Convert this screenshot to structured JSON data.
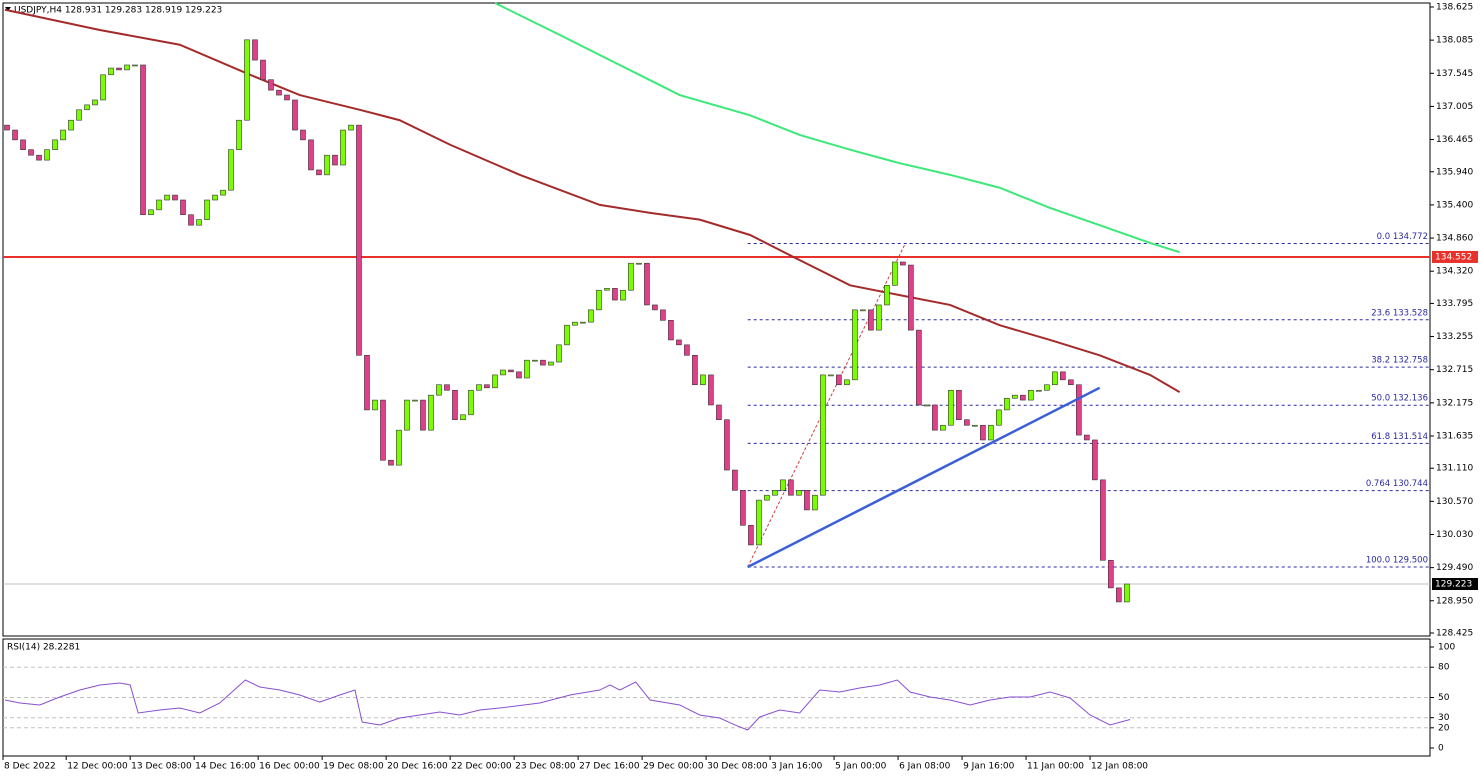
{
  "chart_data": {
    "type": "candlestick",
    "title": "USDJPY,H4 128.931 129.283 128.919 129.223",
    "candles": {
      "up_color": "#7cfc00",
      "down_color": "#e0408a",
      "open_first": 136.7,
      "close": [
        136.62,
        136.46,
        136.3,
        136.21,
        136.13,
        136.3,
        136.46,
        136.62,
        136.78,
        136.95,
        137.03,
        137.11,
        137.52,
        137.63,
        137.6,
        137.68,
        137.68,
        135.24,
        135.32,
        135.48,
        135.56,
        135.48,
        135.24,
        135.07,
        135.16,
        135.48,
        135.56,
        135.64,
        136.3,
        136.78,
        138.09,
        137.76,
        137.44,
        137.27,
        137.19,
        137.11,
        136.62,
        136.46,
        135.97,
        135.89,
        136.21,
        136.05,
        136.62,
        136.7,
        132.95,
        132.06,
        132.22,
        131.24,
        131.16,
        131.73,
        132.22,
        132.22,
        131.73,
        132.3,
        132.47,
        132.38,
        131.9,
        131.98,
        132.38,
        132.47,
        132.42,
        132.63,
        132.71,
        132.68,
        132.58,
        132.87,
        132.87,
        132.79,
        132.84,
        133.12,
        133.44,
        133.49,
        133.49,
        133.69,
        134.01,
        134.04,
        133.85,
        134.01,
        134.45,
        134.45,
        133.77,
        133.69,
        133.52,
        133.2,
        133.12,
        132.95,
        132.47,
        132.63,
        132.14,
        131.9,
        131.08,
        130.75,
        130.18,
        129.86,
        130.59,
        130.67,
        130.75,
        130.92,
        130.67,
        130.75,
        130.43,
        130.67,
        132.63,
        132.63,
        132.47,
        132.55,
        133.69,
        133.69,
        133.36,
        133.77,
        134.09,
        134.47,
        134.42,
        133.36,
        132.14,
        132.14,
        131.73,
        131.81,
        132.38,
        131.9,
        131.81,
        131.81,
        131.57,
        131.81,
        132.06,
        132.25,
        132.3,
        132.22,
        132.38,
        132.38,
        132.47,
        132.68,
        132.55,
        132.47,
        131.65,
        131.57,
        130.92,
        129.61,
        129.16,
        128.931,
        129.223
      ]
    },
    "xlim": [
      -0.5,
      177.9
    ],
    "ylim": [
      128.376,
      138.69
    ],
    "yticks": [
      138.625,
      138.085,
      137.545,
      137.005,
      136.465,
      {
        "value": 135.94,
        "label": "135.940"
      },
      {
        "value": 135.4,
        "label": "135.400"
      },
      {
        "value": 134.86,
        "label": "134.860"
      },
      {
        "value": 134.32,
        "label": "134.320"
      },
      133.795,
      133.255,
      132.715,
      132.175,
      131.635,
      {
        "value": 131.11,
        "label": "131.110"
      },
      {
        "value": 130.57,
        "label": "130.570"
      },
      {
        "value": 130.03,
        "label": "130.030"
      },
      {
        "value": 129.49,
        "label": "129.490"
      },
      {
        "value": 128.95,
        "label": "128.950"
      },
      128.425
    ],
    "xticks": [
      {
        "value": -0.5,
        "label": "8 Dec 2022"
      },
      {
        "value": 7.4,
        "label": "12 Dec 00:00"
      },
      {
        "value": 15.4,
        "label": "13 Dec 08:00"
      },
      {
        "value": 23.4,
        "label": "14 Dec 16:00"
      },
      {
        "value": 31.4,
        "label": "16 Dec 00:00"
      },
      {
        "value": 39.4,
        "label": "19 Dec 08:00"
      },
      {
        "value": 47.4,
        "label": "20 Dec 16:00"
      },
      {
        "value": 55.4,
        "label": "22 Dec 00:00"
      },
      {
        "value": 63.4,
        "label": "23 Dec 08:00"
      },
      {
        "value": 71.4,
        "label": "27 Dec 16:00"
      },
      {
        "value": 79.4,
        "label": "29 Dec 00:00"
      },
      {
        "value": 87.4,
        "label": "30 Dec 08:00"
      },
      {
        "value": 95.4,
        "label": "3 Jan 16:00"
      },
      {
        "value": 103.4,
        "label": "5 Jan 00:00"
      },
      {
        "value": 111.4,
        "label": "6 Jan 08:00"
      },
      {
        "value": 119.4,
        "label": "9 Jan 16:00"
      },
      {
        "value": 127.4,
        "label": "11 Jan 00:00"
      },
      {
        "value": 135.4,
        "label": "12 Jan 08:00"
      }
    ],
    "moving_averages": [
      {
        "color": "#a52a2a",
        "x": [
          -0.25,
          11.6,
          21.6,
          30.4,
          36.6,
          44.1,
          49.1,
          55.4,
          64.1,
          74.1,
          80.4,
          86.6,
          92.9,
          99.1,
          105.4,
          111.6,
          117.9,
          124.1,
          130.4,
          136.6,
          142.9,
          146.6
        ],
        "values": [
          138.58,
          138.25,
          138.01,
          137.52,
          137.19,
          136.95,
          136.78,
          136.38,
          135.89,
          135.4,
          135.27,
          135.16,
          134.91,
          134.5,
          134.09,
          133.93,
          133.77,
          133.44,
          133.2,
          132.95,
          132.63,
          132.35
        ]
      },
      {
        "color": "#3ce878",
        "x": [
          61,
          69.1,
          76.6,
          84.1,
          92.9,
          99.1,
          105.4,
          111.6,
          117.9,
          124.1,
          130.4,
          136.6,
          142.9,
          146.6
        ],
        "values": [
          138.69,
          138.17,
          137.68,
          137.19,
          136.86,
          136.54,
          136.3,
          136.08,
          135.89,
          135.68,
          135.35,
          135.07,
          134.78,
          134.63
        ]
      }
    ],
    "horizontal_line": {
      "value": 134.552,
      "label": "134.552",
      "color": "#e8312a"
    },
    "current_price": {
      "value": 129.223,
      "label": "129.223"
    },
    "fib_start": 92.6,
    "fib_levels": [
      {
        "value": 134.772,
        "label": "0.0 134.772"
      },
      {
        "value": 133.528,
        "label": "23.6 133.528"
      },
      {
        "value": 132.758,
        "label": "38.2 132.758"
      },
      {
        "value": 132.136,
        "label": "50.0 132.136"
      },
      {
        "value": 131.514,
        "label": "61.8 131.514"
      },
      {
        "value": 130.744,
        "label": "0.764 130.744"
      },
      {
        "value": 129.5,
        "label": "100.0 129.500"
      }
    ],
    "trend_line": {
      "color": "#3a5fd8",
      "x": [
        92.6,
        136.6
      ],
      "values": [
        129.5,
        132.42
      ]
    },
    "fib_connector": {
      "x": [
        92.6,
        112.3
      ],
      "values": [
        129.5,
        134.772
      ]
    },
    "rsi": {
      "label": "RSI(14) 28.2281",
      "color": "#8a4fd0",
      "ylim": [
        0,
        100
      ],
      "yticks": [
        100,
        80,
        50,
        30,
        20,
        0
      ],
      "x": [
        -0.25,
        1.6,
        4.1,
        6.6,
        9.1,
        11.6,
        14.1,
        15.4,
        16.4,
        19.1,
        21.6,
        24.1,
        26.6,
        29.8,
        31.6,
        34.1,
        36.6,
        39.1,
        41.6,
        43.5,
        44.4,
        46.6,
        49.1,
        51.6,
        54.1,
        56.6,
        59.1,
        61.6,
        66.6,
        70.4,
        74.1,
        75.4,
        76.6,
        78.6,
        80.4,
        84.1,
        86.6,
        89.1,
        91.0,
        92.6,
        94.1,
        96.6,
        99.1,
        101.6,
        104.1,
        106.6,
        109.1,
        111.3,
        112.9,
        115.4,
        117.9,
        120.4,
        122.9,
        125.4,
        127.9,
        130.4,
        132.9,
        135.4,
        137.9,
        140.4
      ],
      "values": [
        47.5,
        44.6,
        42.6,
        50.5,
        57.4,
        62.4,
        64.4,
        62.4,
        34.7,
        37.6,
        39.6,
        34.7,
        44.6,
        67.3,
        60.4,
        57.4,
        52.5,
        45.5,
        52.5,
        57.4,
        25.7,
        22.8,
        29.7,
        32.7,
        35.6,
        32.7,
        37.6,
        39.6,
        44.6,
        52.5,
        57.4,
        62.4,
        57.4,
        65.3,
        47.5,
        42.6,
        32.7,
        29.7,
        22.8,
        17.8,
        30.7,
        37.6,
        34.7,
        57.4,
        55.4,
        59.4,
        62.4,
        67.3,
        55.4,
        50.5,
        47.5,
        42.6,
        47.5,
        50.5,
        50.5,
        55.4,
        49.5,
        32.7,
        22.8,
        28.23
      ]
    }
  }
}
